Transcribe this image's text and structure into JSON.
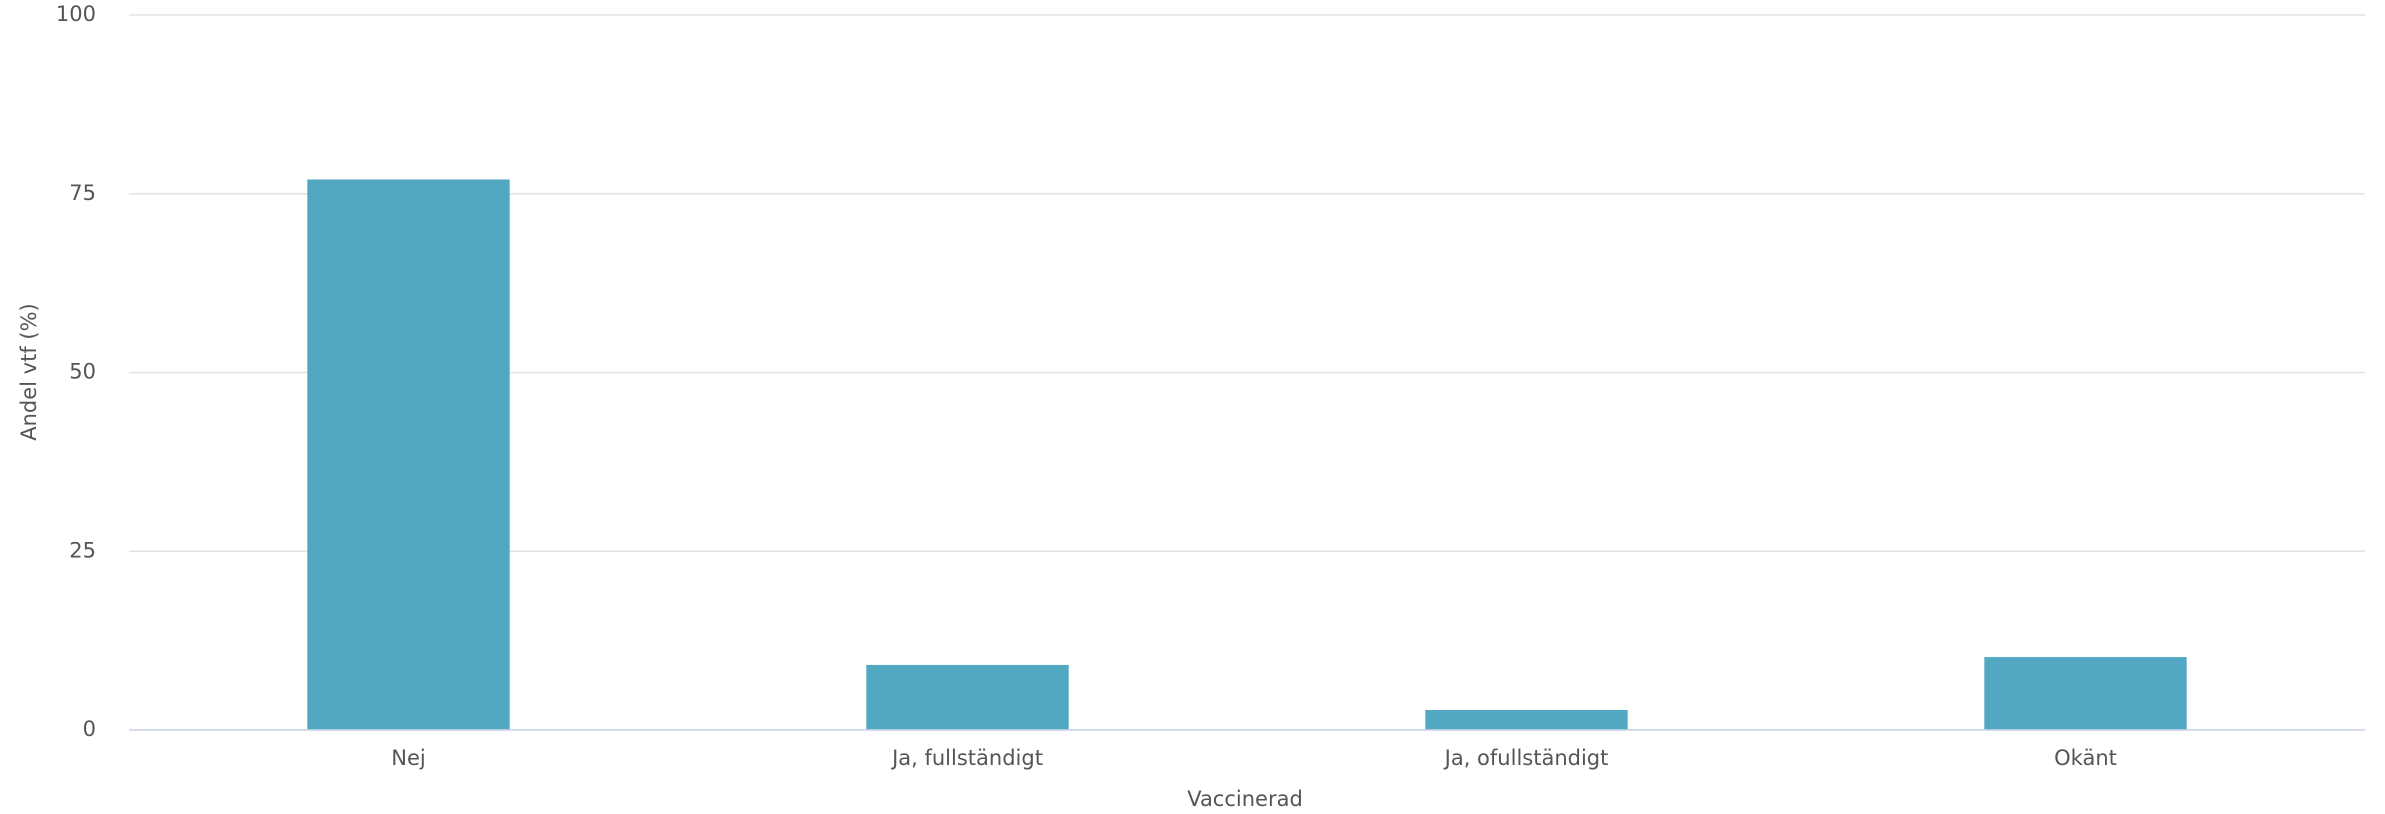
{
  "chart_data": {
    "type": "bar",
    "x_label": "Vaccinerad",
    "y_label": "Andel vtf (%)",
    "categories": [
      "Nej",
      "Ja, fullständigt",
      "Ja, ofullständigt",
      "Okänt"
    ],
    "values": [
      77,
      9.1,
      2.8,
      10.2
    ],
    "color": "#52a7c3",
    "ylim": [
      0,
      100
    ],
    "yticks": [
      0,
      25,
      50,
      75,
      100
    ],
    "grid": true
  }
}
